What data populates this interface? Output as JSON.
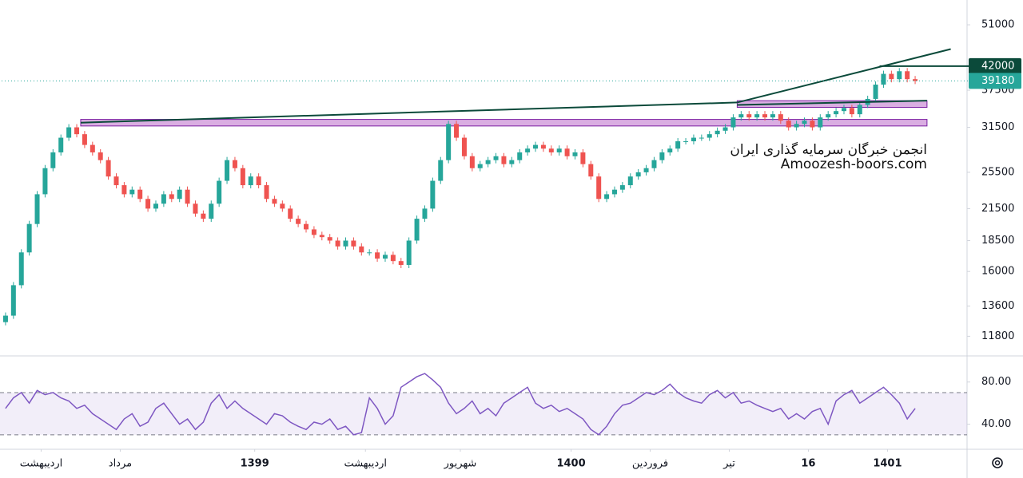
{
  "chart_data": [
    {
      "type": "candlestick",
      "log_scale": true,
      "ylim": [
        10800,
        57300
      ],
      "yticks": [
        11800,
        13600,
        16000,
        18500,
        21500,
        25500,
        31500,
        37500,
        51000
      ],
      "xlim": [
        0,
        116
      ],
      "xticks": [
        {
          "value": 5,
          "label": "اردیبهشت"
        },
        {
          "value": 15,
          "label": "مرداد"
        },
        {
          "value": 32,
          "label": "1399"
        },
        {
          "value": 46,
          "label": "اردیبهشت"
        },
        {
          "value": 58,
          "label": "شهریور"
        },
        {
          "value": 72,
          "label": "1400"
        },
        {
          "value": 82,
          "label": "فروردین"
        },
        {
          "value": 92,
          "label": "تیر"
        },
        {
          "value": 102,
          "label": "16"
        },
        {
          "value": 112,
          "label": "1401"
        }
      ],
      "up_color": "#26a69a",
      "down_color": "#ef5350",
      "values": [
        13000,
        15000,
        17500,
        20000,
        23000,
        26000,
        28000,
        30000,
        31500,
        30500,
        29000,
        28000,
        27000,
        25000,
        24000,
        23000,
        23500,
        22500,
        21500,
        22000,
        23000,
        22500,
        23500,
        22000,
        21000,
        20500,
        22000,
        24500,
        27000,
        26000,
        24000,
        25000,
        24000,
        22500,
        22000,
        21500,
        20500,
        20000,
        19500,
        19000,
        18800,
        18500,
        18000,
        18500,
        18000,
        17500,
        17500,
        17000,
        17300,
        16800,
        16500,
        18500,
        20500,
        21500,
        24500,
        27000,
        32000,
        30000,
        27500,
        26000,
        26500,
        27000,
        27500,
        26500,
        27000,
        28000,
        28500,
        29000,
        28500,
        28000,
        28500,
        27500,
        28000,
        26500,
        25000,
        22500,
        23000,
        23500,
        24000,
        25000,
        25500,
        26000,
        27000,
        28000,
        28500,
        29500,
        29500,
        30000,
        30000,
        30500,
        31000,
        31500,
        33000,
        33500,
        33000,
        33500,
        33000,
        33500,
        32500,
        31500,
        32000,
        32500,
        31500,
        33000,
        33500,
        34000,
        34500,
        33500,
        35000,
        36000,
        38500,
        40500,
        39500,
        41000,
        39500,
        39180
      ],
      "zones": [
        {
          "from": 10,
          "to": 117,
          "low": 31700,
          "high": 32700
        },
        {
          "from": 93,
          "to": 117,
          "low": 34600,
          "high": 35700
        }
      ],
      "trendlines": [
        {
          "x": [
            10,
            93
          ],
          "y": [
            32200,
            35400
          ]
        },
        {
          "x": [
            93,
            120
          ],
          "y": [
            35400,
            45500
          ]
        },
        {
          "x": [
            93,
            117
          ],
          "y": [
            35000,
            35700
          ]
        }
      ],
      "price_labels": [
        {
          "value": 42000,
          "color": "#0b4a3a",
          "from": 111
        },
        {
          "value": 39180,
          "color": "#26a69a",
          "from": 0
        }
      ],
      "watermark": [
        "انجمن خبرگان سرمایه گذاری ایران",
        "Amoozesh-boors.com"
      ]
    },
    {
      "type": "line",
      "color": "#7e57c2",
      "ylim": [
        17,
        104
      ],
      "yticks": [
        {
          "value": 40,
          "label": "40.00"
        },
        {
          "value": 80,
          "label": "80.00"
        }
      ],
      "band": [
        30,
        70
      ],
      "values": [
        55,
        65,
        70,
        60,
        72,
        68,
        70,
        65,
        62,
        55,
        58,
        50,
        45,
        40,
        35,
        45,
        50,
        38,
        42,
        55,
        60,
        50,
        40,
        45,
        35,
        42,
        60,
        68,
        55,
        62,
        55,
        50,
        45,
        40,
        50,
        48,
        42,
        38,
        35,
        42,
        40,
        45,
        35,
        38,
        30,
        32,
        65,
        55,
        40,
        48,
        75,
        80,
        85,
        88,
        82,
        75,
        60,
        50,
        55,
        62,
        50,
        55,
        48,
        60,
        65,
        70,
        75,
        60,
        55,
        58,
        52,
        55,
        50,
        45,
        35,
        30,
        38,
        50,
        58,
        60,
        65,
        70,
        68,
        72,
        78,
        70,
        65,
        62,
        60,
        68,
        72,
        65,
        70,
        60,
        62,
        58,
        55,
        52,
        55,
        45,
        50,
        45,
        52,
        55,
        40,
        62,
        68,
        72,
        60,
        65,
        70,
        75,
        68,
        60,
        45,
        55
      ]
    }
  ]
}
